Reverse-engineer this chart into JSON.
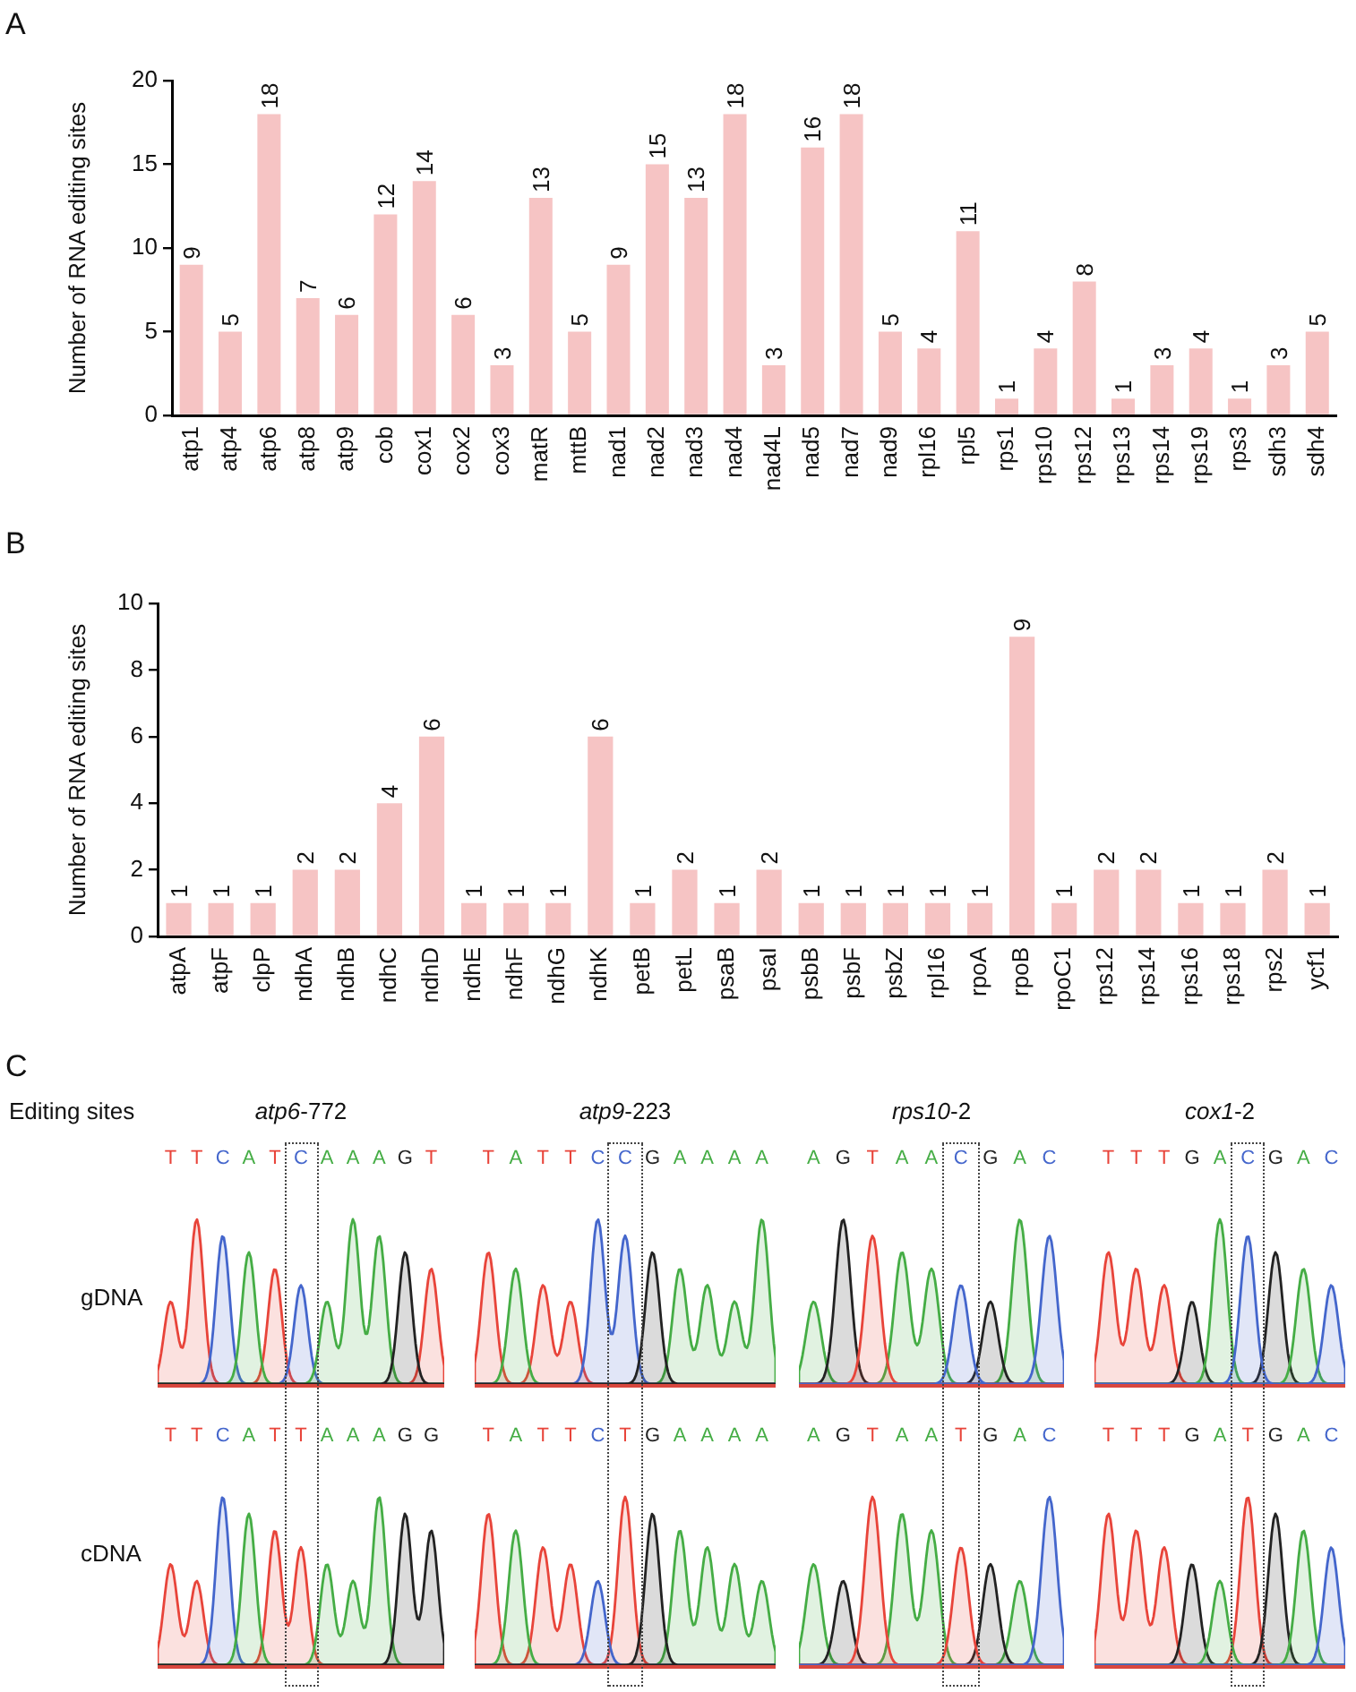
{
  "chart_data": [
    {
      "type": "bar",
      "title": "A",
      "ylabel": "Number of RNA editing sites",
      "categories": [
        "atp1",
        "atp4",
        "atp6",
        "atp8",
        "atp9",
        "cob",
        "cox1",
        "cox2",
        "cox3",
        "matR",
        "mttB",
        "nad1",
        "nad2",
        "nad3",
        "nad4",
        "nad4L",
        "nad5",
        "nad7",
        "nad9",
        "rpl16",
        "rpl5",
        "rps1",
        "rps10",
        "rps12",
        "rps13",
        "rps14",
        "rps19",
        "rps3",
        "sdh3",
        "sdh4"
      ],
      "values": [
        9,
        5,
        18,
        7,
        6,
        12,
        14,
        6,
        3,
        13,
        5,
        9,
        15,
        13,
        18,
        3,
        16,
        18,
        5,
        4,
        11,
        1,
        4,
        8,
        1,
        3,
        4,
        1,
        3,
        5
      ],
      "color": "#f6c4c4",
      "ylim": [
        0,
        20
      ],
      "yticks": [
        0,
        5,
        10,
        15,
        20
      ],
      "data_labels": true
    },
    {
      "type": "bar",
      "title": "B",
      "ylabel": "Number of RNA editing sites",
      "categories": [
        "atpA",
        "atpF",
        "clpP",
        "ndhA",
        "ndhB",
        "ndhC",
        "ndhD",
        "ndhE",
        "ndhF",
        "ndhG",
        "ndhK",
        "petB",
        "petL",
        "psaB",
        "psaI",
        "psbB",
        "psbF",
        "psbZ",
        "rpl16",
        "rpoA",
        "rpoB",
        "rpoC1",
        "rps12",
        "rps14",
        "rps16",
        "rps18",
        "rps2",
        "ycf1"
      ],
      "values": [
        1,
        1,
        1,
        2,
        2,
        4,
        6,
        1,
        1,
        1,
        6,
        1,
        2,
        1,
        2,
        1,
        1,
        1,
        1,
        1,
        9,
        1,
        2,
        2,
        1,
        1,
        2,
        1
      ],
      "color": "#f6c4c4",
      "ylim": [
        0,
        10
      ],
      "yticks": [
        0,
        2,
        4,
        6,
        8,
        10
      ],
      "data_labels": true
    },
    {
      "type": "other",
      "title": "C",
      "annotations": [
        "Editing sites"
      ],
      "categories": [
        "atp6-772",
        "atp9-223",
        "rps10-2",
        "cox1-2"
      ],
      "y_categories": [
        "gDNA",
        "cDNA"
      ],
      "cell_labels": [
        [
          "T T C A T C A A A G T",
          "T A T T C C G A A A A",
          "A G T A A C G A C",
          "T T T G A C G A C"
        ],
        [
          "T T C A T T A A A G G",
          "T A T T C T G A A A A",
          "A G T A A T G A C",
          "T T T G A T G A C"
        ]
      ]
    }
  ]
}
